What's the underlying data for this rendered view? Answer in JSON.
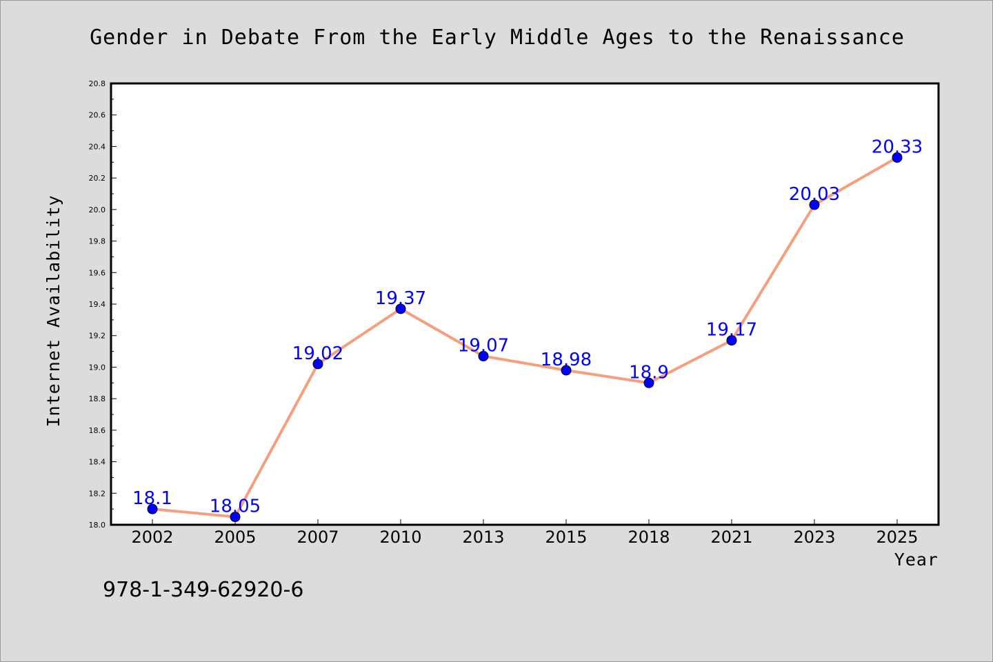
{
  "chart_data": {
    "type": "line",
    "title": "Gender in Debate From the Early Middle Ages to the Renaissance",
    "xlabel": "Year",
    "ylabel": "Internet Availability",
    "categories": [
      "2002",
      "2005",
      "2007",
      "2010",
      "2013",
      "2015",
      "2018",
      "2021",
      "2023",
      "2025"
    ],
    "values": [
      18.1,
      18.05,
      19.02,
      19.37,
      19.07,
      18.98,
      18.9,
      19.17,
      20.03,
      20.33
    ],
    "data_labels": [
      "18.1",
      "18.05",
      "19.02",
      "19.37",
      "19.07",
      "18.98",
      "18.9",
      "19.17",
      "20.03",
      "20.33"
    ],
    "yticks": [
      "18.0",
      "18.2",
      "18.4",
      "18.6",
      "18.8",
      "19.0",
      "19.2",
      "19.4",
      "19.6",
      "19.8",
      "20.0",
      "20.2",
      "20.4",
      "20.6",
      "20.8"
    ],
    "ylim": [
      18.0,
      20.8
    ],
    "grid": false,
    "line_color": "#f4a07e",
    "marker_color": "#0000ff",
    "label_color": "#0000ff"
  },
  "footer": {
    "isbn": "978-1-349-62920-6"
  }
}
